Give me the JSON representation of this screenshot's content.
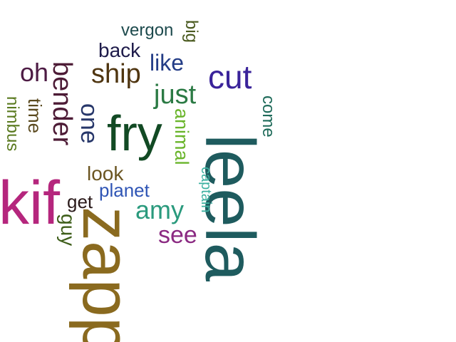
{
  "word_cloud": {
    "words": [
      {
        "text": "kif",
        "color": "#b5267d"
      },
      {
        "text": "zapp",
        "color": "#8a6a1f"
      },
      {
        "text": "leela",
        "color": "#1e5b5e"
      },
      {
        "text": "fry",
        "color": "#124a24"
      },
      {
        "text": "bender",
        "color": "#4d1b36"
      },
      {
        "text": "cut",
        "color": "#3a239a"
      },
      {
        "text": "ship",
        "color": "#4f3510"
      },
      {
        "text": "just",
        "color": "#2b7a44"
      },
      {
        "text": "amy",
        "color": "#2a9a7d"
      },
      {
        "text": "see",
        "color": "#8b2a82"
      },
      {
        "text": "one",
        "color": "#27376a"
      },
      {
        "text": "oh",
        "color": "#4d1b44"
      },
      {
        "text": "animal",
        "color": "#6ab52b"
      },
      {
        "text": "planet",
        "color": "#2f55b5"
      },
      {
        "text": "like",
        "color": "#233c86"
      },
      {
        "text": "back",
        "color": "#1e1b4a"
      },
      {
        "text": "look",
        "color": "#6b5521"
      },
      {
        "text": "time",
        "color": "#5b4a1f"
      },
      {
        "text": "nimbus",
        "color": "#5a7a1f"
      },
      {
        "text": "guy",
        "color": "#3e5e1a"
      },
      {
        "text": "get",
        "color": "#2a1a1a"
      },
      {
        "text": "come",
        "color": "#1f6b5a"
      },
      {
        "text": "vergon",
        "color": "#1d4a4d"
      },
      {
        "text": "big",
        "color": "#4a5a1f"
      },
      {
        "text": "captain",
        "color": "#3cb0a0"
      }
    ]
  }
}
